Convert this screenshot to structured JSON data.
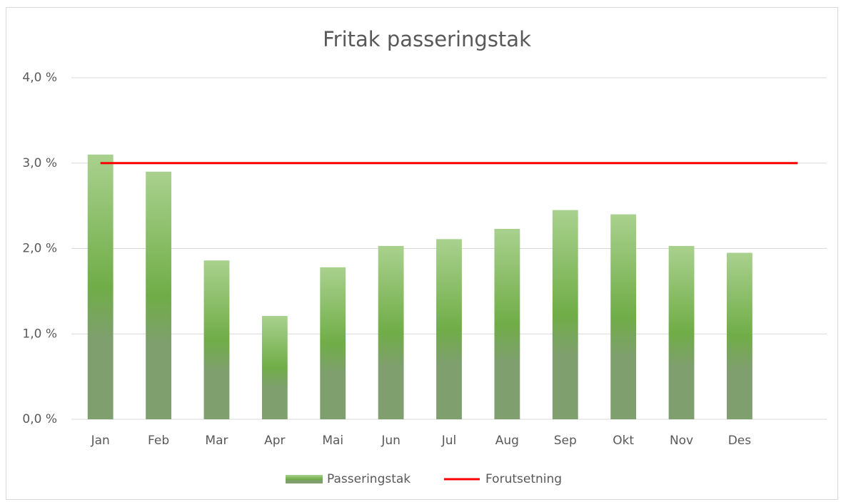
{
  "chart_data": {
    "type": "bar",
    "title": "Fritak passeringstak",
    "categories": [
      "Jan",
      "Feb",
      "Mar",
      "Apr",
      "Mai",
      "Jun",
      "Jul",
      "Aug",
      "Sep",
      "Okt",
      "Nov",
      "Des",
      null
    ],
    "series": [
      {
        "name": "Passeringstak",
        "type": "bar",
        "color": "#70ad47",
        "values": [
          3.1,
          2.9,
          1.86,
          1.21,
          1.78,
          2.03,
          2.11,
          2.23,
          2.45,
          2.4,
          2.03,
          1.95,
          null
        ]
      },
      {
        "name": "Forutsetning",
        "type": "line",
        "color": "#ff0000",
        "values": [
          3,
          3,
          3,
          3,
          3,
          3,
          3,
          3,
          3,
          3,
          3,
          3,
          3
        ]
      }
    ],
    "ylim": [
      0,
      4
    ],
    "yticks": [
      {
        "value": 0,
        "label": "0,0 %"
      },
      {
        "value": 1,
        "label": "1,0 %"
      },
      {
        "value": 2,
        "label": "2,0 %"
      },
      {
        "value": 3,
        "label": "3,0 %"
      },
      {
        "value": 4,
        "label": "4,0 %"
      }
    ],
    "grid": true,
    "legend": "bottom"
  }
}
